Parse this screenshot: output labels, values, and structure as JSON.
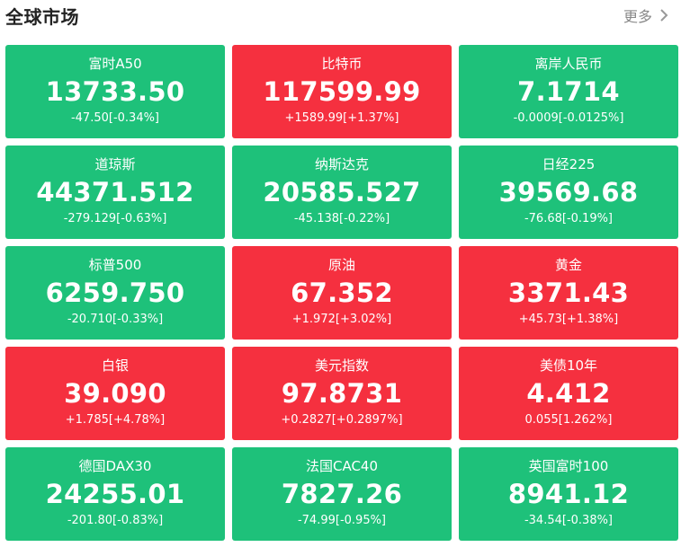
{
  "header": {
    "title": "全球市场",
    "more_label": "更多",
    "more_icon": "chevron-right-icon"
  },
  "colors": {
    "down": "#1ec17a",
    "up": "#f5303f"
  },
  "cards": [
    {
      "name": "富时A50",
      "price": "13733.50",
      "change": "-47.50[-0.34%]",
      "trend": "down"
    },
    {
      "name": "比特币",
      "price": "117599.99",
      "change": "+1589.99[+1.37%]",
      "trend": "up"
    },
    {
      "name": "离岸人民币",
      "price": "7.1714",
      "change": "-0.0009[-0.0125%]",
      "trend": "down"
    },
    {
      "name": "道琼斯",
      "price": "44371.512",
      "change": "-279.129[-0.63%]",
      "trend": "down"
    },
    {
      "name": "纳斯达克",
      "price": "20585.527",
      "change": "-45.138[-0.22%]",
      "trend": "down"
    },
    {
      "name": "日经225",
      "price": "39569.68",
      "change": "-76.68[-0.19%]",
      "trend": "down"
    },
    {
      "name": "标普500",
      "price": "6259.750",
      "change": "-20.710[-0.33%]",
      "trend": "down"
    },
    {
      "name": "原油",
      "price": "67.352",
      "change": "+1.972[+3.02%]",
      "trend": "up"
    },
    {
      "name": "黄金",
      "price": "3371.43",
      "change": "+45.73[+1.38%]",
      "trend": "up"
    },
    {
      "name": "白银",
      "price": "39.090",
      "change": "+1.785[+4.78%]",
      "trend": "up"
    },
    {
      "name": "美元指数",
      "price": "97.8731",
      "change": "+0.2827[+0.2897%]",
      "trend": "up"
    },
    {
      "name": "美债10年",
      "price": "4.412",
      "change": "0.055[1.262%]",
      "trend": "up"
    },
    {
      "name": "德国DAX30",
      "price": "24255.01",
      "change": "-201.80[-0.83%]",
      "trend": "down"
    },
    {
      "name": "法国CAC40",
      "price": "7827.26",
      "change": "-74.99[-0.95%]",
      "trend": "down"
    },
    {
      "name": "英国富时100",
      "price": "8941.12",
      "change": "-34.54[-0.38%]",
      "trend": "down"
    }
  ]
}
